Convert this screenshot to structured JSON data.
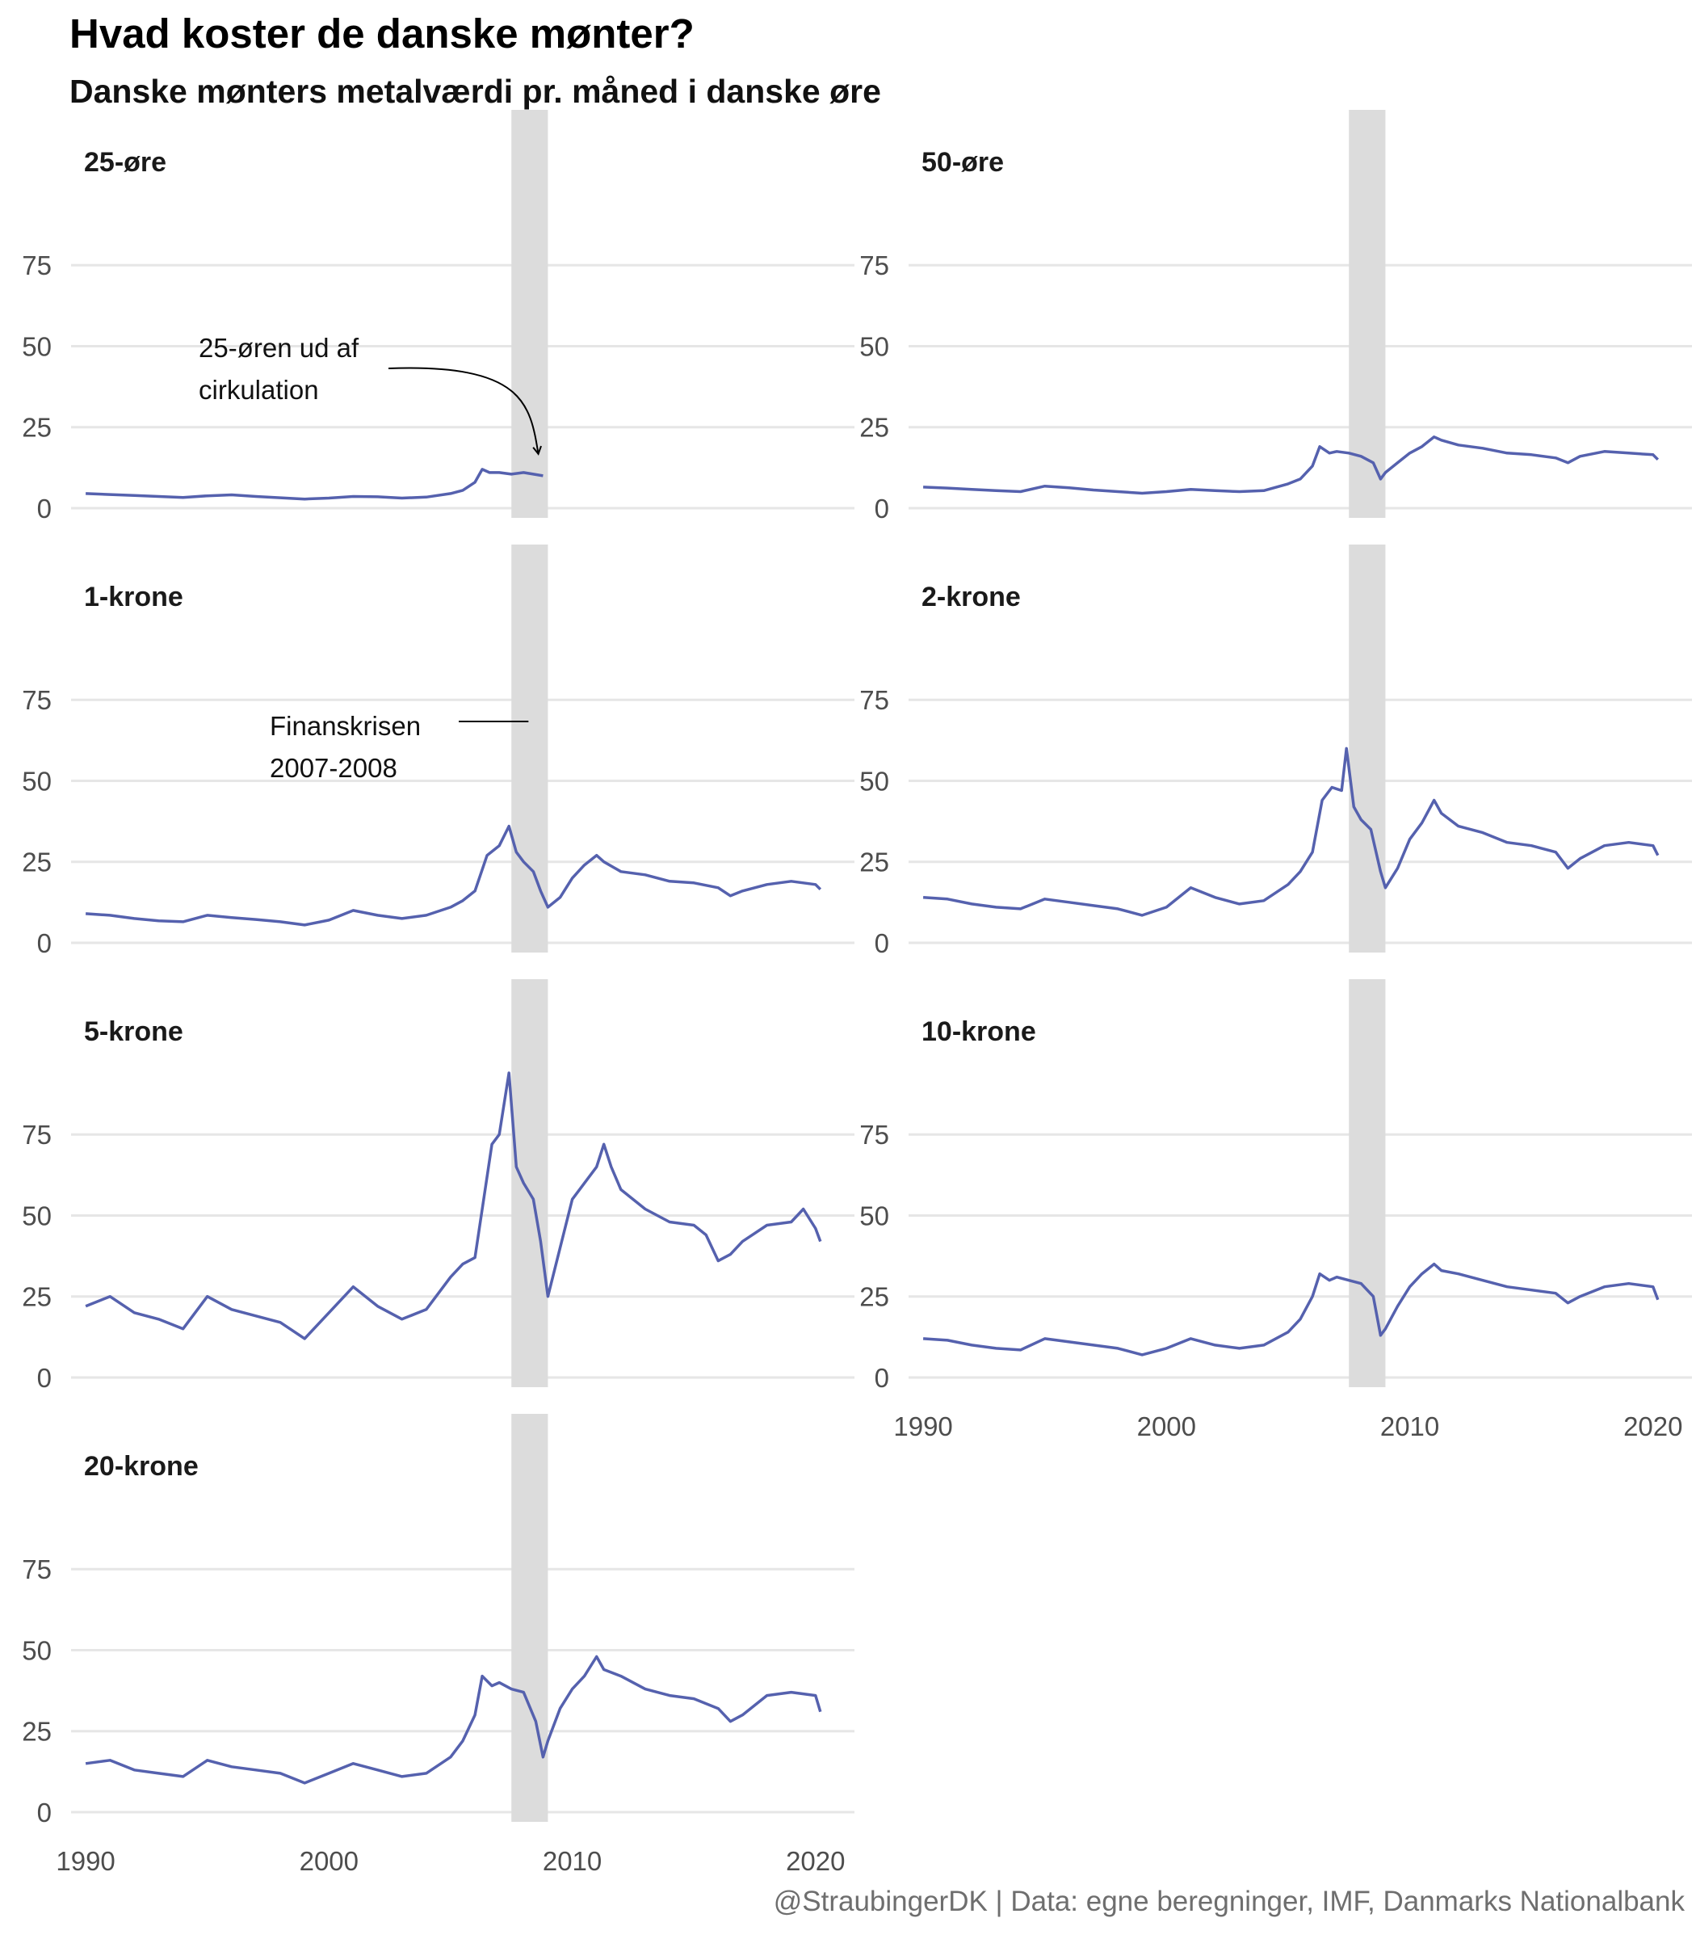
{
  "title": "Hvad koster de danske mønter?",
  "subtitle": "Danske mønters metalværdi pr. måned i danske øre",
  "caption": "@StraubingerDK | Data: egne beregninger, IMF, Danmarks Nationalbank",
  "colors": {
    "line": "#5561AE",
    "band": "#DCDCDC",
    "grid": "#E6E6E6",
    "text": "#4D4D4D"
  },
  "chart_data": {
    "type": "line",
    "layout": "facets",
    "x_unit": "year",
    "xlim": [
      1989.4,
      2021.6
    ],
    "ylim": [
      -3,
      98
    ],
    "y_ticks": [
      0,
      25,
      50,
      75
    ],
    "x_ticks": [
      1990,
      2000,
      2010,
      2020
    ],
    "grid": "horizontal",
    "highlight_band": {
      "x": [
        2007.5,
        2009.0
      ]
    },
    "annotations": [
      {
        "facet": 0,
        "text": [
          "25-øren ud af",
          "cirkulation"
        ]
      },
      {
        "facet": 2,
        "text": [
          "Finanskrisen",
          "2007-2008"
        ]
      }
    ],
    "facets": [
      {
        "name": "25-øre",
        "x": [
          1990,
          1991,
          1992,
          1993,
          1994,
          1995,
          1996,
          1997,
          1998,
          1999,
          2000,
          2001,
          2002,
          2003,
          2004,
          2005,
          2005.5,
          2006,
          2006.3,
          2006.6,
          2007,
          2007.5,
          2008,
          2008.4,
          2008.8
        ],
        "y": [
          4.5,
          4.2,
          3.9,
          3.6,
          3.3,
          3.8,
          4.1,
          3.6,
          3.2,
          2.8,
          3.1,
          3.6,
          3.5,
          3.1,
          3.4,
          4.5,
          5.5,
          8,
          12,
          11,
          11,
          10.5,
          11,
          10.5,
          10
        ]
      },
      {
        "name": "50-øre",
        "x": [
          1990,
          1991,
          1992,
          1993,
          1994,
          1995,
          1996,
          1997,
          1998,
          1999,
          2000,
          2001,
          2002,
          2003,
          2004,
          2005,
          2005.5,
          2006,
          2006.3,
          2006.7,
          2007,
          2007.5,
          2008,
          2008.5,
          2008.8,
          2009,
          2009.5,
          2010,
          2010.5,
          2011,
          2011.3,
          2012,
          2013,
          2014,
          2015,
          2016,
          2016.5,
          2017,
          2018,
          2019,
          2020,
          2020.2
        ],
        "y": [
          6.5,
          6.2,
          5.8,
          5.4,
          5.1,
          6.8,
          6.3,
          5.6,
          5.1,
          4.6,
          5.1,
          5.8,
          5.4,
          5.1,
          5.4,
          7.5,
          9,
          13,
          19,
          17,
          17.5,
          17,
          16,
          14,
          9,
          11,
          14,
          17,
          19,
          22,
          21,
          19.5,
          18.5,
          17,
          16.5,
          15.5,
          14,
          16,
          17.5,
          17,
          16.5,
          15
        ]
      },
      {
        "name": "1-krone",
        "x": [
          1990,
          1991,
          1992,
          1993,
          1994,
          1995,
          1996,
          1997,
          1998,
          1999,
          2000,
          2001,
          2002,
          2003,
          2004,
          2005,
          2005.5,
          2006,
          2006.5,
          2007,
          2007.4,
          2007.7,
          2008,
          2008.4,
          2008.7,
          2009,
          2009.5,
          2010,
          2010.5,
          2011,
          2011.3,
          2012,
          2013,
          2014,
          2015,
          2016,
          2016.5,
          2017,
          2018,
          2019,
          2020,
          2020.2
        ],
        "y": [
          9,
          8.5,
          7.5,
          6.8,
          6.5,
          8.5,
          7.8,
          7.2,
          6.5,
          5.5,
          7,
          10,
          8.5,
          7.5,
          8.5,
          11,
          13,
          16,
          27,
          30,
          36,
          28,
          25,
          22,
          16,
          11,
          14,
          20,
          24,
          27,
          25,
          22,
          21,
          19,
          18.5,
          17,
          14.5,
          16,
          18,
          19,
          18,
          16.5
        ]
      },
      {
        "name": "2-krone",
        "x": [
          1990,
          1991,
          1992,
          1993,
          1994,
          1995,
          1996,
          1997,
          1998,
          1999,
          2000,
          2001,
          2002,
          2003,
          2004,
          2005,
          2005.5,
          2006,
          2006.4,
          2006.8,
          2007.2,
          2007.4,
          2007.7,
          2008,
          2008.4,
          2008.8,
          2009,
          2009.5,
          2010,
          2010.5,
          2011,
          2011.3,
          2012,
          2013,
          2014,
          2015,
          2016,
          2016.5,
          2017,
          2018,
          2019,
          2020,
          2020.2
        ],
        "y": [
          14,
          13.5,
          12,
          11,
          10.5,
          13.5,
          12.5,
          11.5,
          10.5,
          8.5,
          11,
          17,
          14,
          12,
          13,
          18,
          22,
          28,
          44,
          48,
          47,
          60,
          42,
          38,
          35,
          22,
          17,
          23,
          32,
          37,
          44,
          40,
          36,
          34,
          31,
          30,
          28,
          23,
          26,
          30,
          31,
          30,
          27
        ]
      },
      {
        "name": "5-krone",
        "x": [
          1990,
          1991,
          1992,
          1993,
          1994,
          1995,
          1996,
          1997,
          1998,
          1999,
          2000,
          2001,
          2002,
          2003,
          2004,
          2005,
          2005.5,
          2006,
          2006.3,
          2006.7,
          2007,
          2007.4,
          2007.7,
          2008,
          2008.4,
          2008.7,
          2009,
          2009.5,
          2010,
          2010.5,
          2011,
          2011.3,
          2011.6,
          2012,
          2013,
          2014,
          2015,
          2015.5,
          2016,
          2016.5,
          2017,
          2018,
          2019,
          2019.5,
          2020,
          2020.2
        ],
        "y": [
          22,
          25,
          20,
          18,
          15,
          25,
          21,
          19,
          17,
          12,
          20,
          28,
          22,
          18,
          21,
          31,
          35,
          37,
          52,
          72,
          75,
          94,
          65,
          60,
          55,
          42,
          25,
          40,
          55,
          60,
          65,
          72,
          65,
          58,
          52,
          48,
          47,
          44,
          36,
          38,
          42,
          47,
          48,
          52,
          46,
          42
        ]
      },
      {
        "name": "10-krone",
        "x": [
          1990,
          1991,
          1992,
          1993,
          1994,
          1995,
          1996,
          1997,
          1998,
          1999,
          2000,
          2001,
          2002,
          2003,
          2004,
          2005,
          2005.5,
          2006,
          2006.3,
          2006.7,
          2007,
          2007.5,
          2008,
          2008.5,
          2008.8,
          2009,
          2009.5,
          2010,
          2010.5,
          2011,
          2011.3,
          2012,
          2013,
          2014,
          2015,
          2016,
          2016.5,
          2017,
          2018,
          2019,
          2020,
          2020.2
        ],
        "y": [
          12,
          11.5,
          10,
          9,
          8.5,
          12,
          11,
          10,
          9,
          7,
          9,
          12,
          10,
          9,
          10,
          14,
          18,
          25,
          32,
          30,
          31,
          30,
          29,
          25,
          13,
          15,
          22,
          28,
          32,
          35,
          33,
          32,
          30,
          28,
          27,
          26,
          23,
          25,
          28,
          29,
          28,
          24
        ]
      },
      {
        "name": "20-krone",
        "x": [
          1990,
          1991,
          1992,
          1993,
          1994,
          1995,
          1996,
          1997,
          1998,
          1999,
          2000,
          2001,
          2002,
          2003,
          2004,
          2005,
          2005.5,
          2006,
          2006.3,
          2006.7,
          2007,
          2007.5,
          2008,
          2008.5,
          2008.8,
          2009,
          2009.5,
          2010,
          2010.5,
          2011,
          2011.3,
          2012,
          2013,
          2014,
          2015,
          2016,
          2016.5,
          2017,
          2018,
          2019,
          2020,
          2020.2
        ],
        "y": [
          15,
          16,
          13,
          12,
          11,
          16,
          14,
          13,
          12,
          9,
          12,
          15,
          13,
          11,
          12,
          17,
          22,
          30,
          42,
          39,
          40,
          38,
          37,
          28,
          17,
          22,
          32,
          38,
          42,
          48,
          44,
          42,
          38,
          36,
          35,
          32,
          28,
          30,
          36,
          37,
          36,
          31
        ]
      }
    ]
  }
}
